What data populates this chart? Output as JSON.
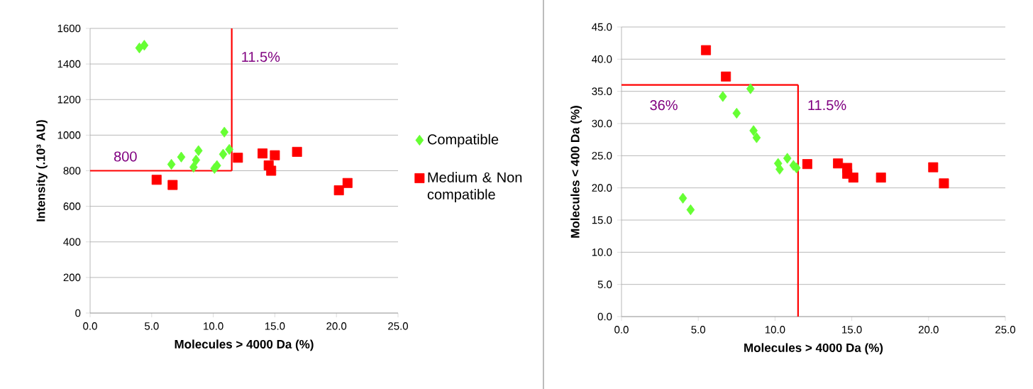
{
  "chart_data": [
    {
      "type": "scatter",
      "xlabel": "Molecules > 4000 Da (%)",
      "ylabel": "Intensity (.10³ AU)",
      "xlim": [
        0,
        25
      ],
      "ylim": [
        0,
        1600
      ],
      "xticks": [
        {
          "value": 0,
          "label": "0.0"
        },
        {
          "value": 5,
          "label": "5.0"
        },
        {
          "value": 10,
          "label": "10.0"
        },
        {
          "value": 15,
          "label": "15.0"
        },
        {
          "value": 20,
          "label": "20.0"
        },
        {
          "value": 25,
          "label": "25.0"
        }
      ],
      "yticks": [
        0,
        200,
        400,
        600,
        800,
        1000,
        1200,
        1400,
        1600
      ],
      "grid": "y",
      "legend": "right",
      "series": [
        {
          "name": "Compatible",
          "color": "#66ff33",
          "marker": "diamond",
          "x": [
            4.0,
            4.4,
            6.6,
            7.4,
            8.4,
            8.6,
            8.8,
            10.1,
            10.3,
            10.8,
            10.9,
            11.3
          ],
          "values": [
            1490,
            1505,
            836,
            877,
            820,
            860,
            913,
            813,
            829,
            893,
            1017,
            920
          ]
        },
        {
          "name": "Medium & Non compatible",
          "color": "#ff0000",
          "marker": "square",
          "x": [
            5.4,
            6.7,
            12.0,
            14.0,
            14.5,
            14.7,
            15.0,
            16.8,
            20.2,
            20.9
          ],
          "values": [
            749,
            720,
            873,
            897,
            830,
            800,
            887,
            906,
            690,
            731
          ]
        }
      ],
      "ref_lines": [
        {
          "axis": "x",
          "value": 11.5,
          "label": "11.5%",
          "color": "#ff0000"
        },
        {
          "axis": "y",
          "value": 800,
          "label": "800",
          "color": "#ff0000"
        }
      ]
    },
    {
      "type": "scatter",
      "xlabel": "Molecules > 4000 Da (%)",
      "ylabel": "Molecules < 400 Da (%)",
      "xlim": [
        0,
        25
      ],
      "ylim": [
        0,
        45
      ],
      "xticks": [
        {
          "value": 0,
          "label": "0.0"
        },
        {
          "value": 5,
          "label": "5.0"
        },
        {
          "value": 10,
          "label": "10.0"
        },
        {
          "value": 15,
          "label": "15.0"
        },
        {
          "value": 20,
          "label": "20.0"
        },
        {
          "value": 25,
          "label": "25.0"
        }
      ],
      "yticks": [
        {
          "value": 0,
          "label": "0.0"
        },
        {
          "value": 5,
          "label": "5.0"
        },
        {
          "value": 10,
          "label": "10.0"
        },
        {
          "value": 15,
          "label": "15.0"
        },
        {
          "value": 20,
          "label": "20.0"
        },
        {
          "value": 25,
          "label": "25.0"
        },
        {
          "value": 30,
          "label": "30.0"
        },
        {
          "value": 35,
          "label": "35.0"
        },
        {
          "value": 40,
          "label": "40.0"
        },
        {
          "value": 45,
          "label": "45.0"
        }
      ],
      "grid": "y",
      "series": [
        {
          "color": "#66ff33",
          "marker": "diamond",
          "x": [
            4.0,
            4.5,
            6.6,
            7.5,
            8.4,
            8.6,
            8.8,
            10.2,
            10.3,
            10.8,
            11.2,
            11.4
          ],
          "values": [
            18.4,
            16.6,
            34.2,
            31.6,
            35.4,
            28.9,
            27.8,
            23.8,
            22.9,
            24.6,
            23.5,
            23.1
          ]
        },
        {
          "color": "#ff0000",
          "marker": "square",
          "x": [
            5.5,
            6.8,
            12.1,
            14.1,
            14.7,
            14.7,
            15.1,
            16.9,
            20.3,
            21.0
          ],
          "values": [
            41.4,
            37.3,
            23.7,
            23.8,
            23.1,
            22.2,
            21.6,
            21.6,
            23.2,
            20.7
          ]
        }
      ],
      "ref_lines": [
        {
          "axis": "y",
          "value": 36,
          "label": "36%",
          "color": "#ff0000"
        },
        {
          "axis": "x",
          "value": 11.5,
          "label": "11.5%",
          "color": "#ff0000"
        }
      ]
    }
  ]
}
